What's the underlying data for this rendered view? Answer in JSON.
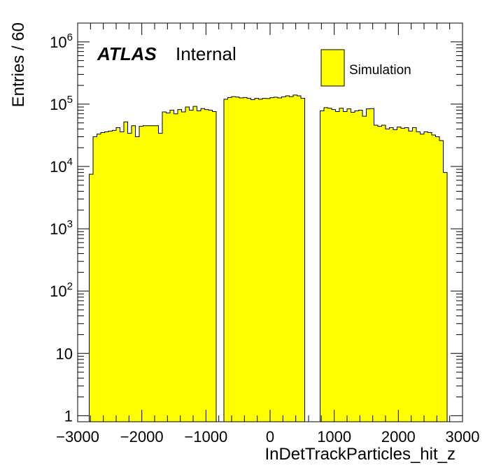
{
  "chart_data": {
    "type": "bar",
    "xlabel": "InDetTrackParticles_hit_z",
    "ylabel": "Entries / 60",
    "xlim": [
      -3000,
      3000
    ],
    "ylim": [
      0.8,
      2000000
    ],
    "yscale": "log",
    "bin_width": 60,
    "atlas_label": "ATLAS",
    "atlas_status": "Internal",
    "legend": [
      {
        "name": "Simulation",
        "color": "#ffff00"
      }
    ],
    "x_ticks": [
      {
        "value": -3000,
        "label": "−3000"
      },
      {
        "value": -2000,
        "label": "−2000"
      },
      {
        "value": -1000,
        "label": "−1000"
      },
      {
        "value": 0,
        "label": "0"
      },
      {
        "value": 1000,
        "label": "1000"
      },
      {
        "value": 2000,
        "label": "2000"
      },
      {
        "value": 3000,
        "label": "3000"
      }
    ],
    "y_ticks": [
      {
        "value": 1,
        "base": "1",
        "exp": ""
      },
      {
        "value": 10,
        "base": "10",
        "exp": ""
      },
      {
        "value": 100,
        "base": "10",
        "exp": "2"
      },
      {
        "value": 1000,
        "base": "10",
        "exp": "3"
      },
      {
        "value": 10000,
        "base": "10",
        "exp": "4"
      },
      {
        "value": 100000,
        "base": "10",
        "exp": "5"
      },
      {
        "value": 1000000,
        "base": "10",
        "exp": "6"
      }
    ],
    "colors": {
      "fill": "#ffff00",
      "line": "#000000"
    },
    "series": [
      {
        "x_start": -2820,
        "values": [
          7500,
          30000,
          33000,
          35000,
          36000,
          37000,
          38000,
          42000,
          36000,
          52000,
          34000,
          45000,
          30000,
          44000,
          45000,
          45000,
          45000,
          45000,
          34000,
          75000,
          72000,
          80000,
          70000,
          82000,
          75000,
          90000,
          80000,
          92000,
          78000,
          85000,
          82000,
          80000,
          76000
        ]
      },
      {
        "x_start": -720,
        "values": [
          120000,
          128000,
          132000,
          130000,
          126000,
          128000,
          124000,
          118000,
          124000,
          120000,
          124000,
          123000,
          127000,
          129000,
          126000,
          131000,
          136000,
          132000,
          140000,
          136000,
          124000
        ]
      },
      {
        "x_start": 780,
        "values": [
          78000,
          88000,
          86000,
          82000,
          76000,
          86000,
          76000,
          84000,
          74000,
          78000,
          80000,
          64000,
          84000,
          85000,
          46000,
          44000,
          46000,
          40000,
          42000,
          39000,
          43000,
          41000,
          42000,
          37000,
          42000,
          36000,
          33000,
          36000,
          35000,
          32000,
          30000,
          26000,
          8000
        ]
      }
    ]
  }
}
